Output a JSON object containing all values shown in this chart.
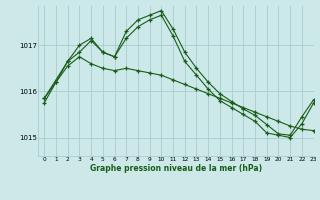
{
  "title": "Graphe pression niveau de la mer (hPa)",
  "bg_color": "#cce8e8",
  "grid_color": "#aacccc",
  "line_color": "#1a5c1a",
  "marker_color": "#1a5c1a",
  "xlim": [
    -0.5,
    23
  ],
  "ylim": [
    1014.6,
    1017.85
  ],
  "yticks": [
    1015,
    1016,
    1017
  ],
  "xticks": [
    0,
    1,
    2,
    3,
    4,
    5,
    6,
    7,
    8,
    9,
    10,
    11,
    12,
    13,
    14,
    15,
    16,
    17,
    18,
    19,
    20,
    21,
    22,
    23
  ],
  "series1_x": [
    0,
    1,
    2,
    3,
    4,
    5,
    6,
    7,
    8,
    9,
    10,
    11,
    12,
    13,
    14,
    15,
    16,
    17,
    18,
    19,
    20,
    21,
    22,
    23
  ],
  "series1_y": [
    1015.85,
    1016.2,
    1016.55,
    1016.75,
    1016.6,
    1016.5,
    1016.45,
    1016.5,
    1016.45,
    1016.4,
    1016.35,
    1016.25,
    1016.15,
    1016.05,
    1015.95,
    1015.85,
    1015.75,
    1015.65,
    1015.55,
    1015.45,
    1015.35,
    1015.25,
    1015.18,
    1015.15
  ],
  "series2_x": [
    0,
    1,
    2,
    3,
    4,
    5,
    6,
    7,
    8,
    9,
    10,
    11,
    12,
    13,
    14,
    15,
    16,
    17,
    18,
    19,
    20,
    21,
    22,
    23
  ],
  "series2_y": [
    1015.75,
    1016.2,
    1016.65,
    1017.0,
    1017.15,
    1016.85,
    1016.75,
    1017.15,
    1017.4,
    1017.55,
    1017.65,
    1017.2,
    1016.65,
    1016.35,
    1016.05,
    1015.8,
    1015.65,
    1015.5,
    1015.35,
    1015.1,
    1015.05,
    1015.0,
    1015.3,
    1015.75
  ],
  "series3_x": [
    0,
    2,
    3,
    4,
    5,
    6,
    7,
    8,
    9,
    10,
    11,
    12,
    13,
    14,
    15,
    16,
    17,
    18,
    19,
    20,
    21,
    22,
    23
  ],
  "series3_y": [
    1015.85,
    1016.65,
    1016.85,
    1017.1,
    1016.85,
    1016.75,
    1017.3,
    1017.55,
    1017.65,
    1017.75,
    1017.35,
    1016.85,
    1016.5,
    1016.2,
    1015.95,
    1015.78,
    1015.62,
    1015.48,
    1015.28,
    1015.08,
    1015.05,
    1015.45,
    1015.82
  ]
}
